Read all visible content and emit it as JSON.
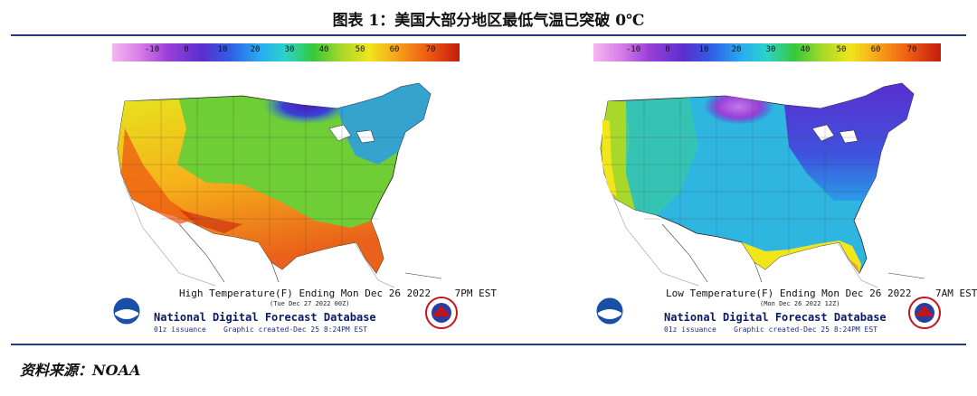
{
  "title": "图表 1：美国大部分地区最低气温已突破 0℃",
  "source": "资料来源：NOAA",
  "colorbar": {
    "ticks": [
      "-10",
      "0",
      "10",
      "20",
      "30",
      "40",
      "50",
      "60",
      "70"
    ],
    "gradient_colors": [
      "#f4b8f0",
      "#d87ce6",
      "#9a3fd8",
      "#5a2fcf",
      "#2f5fe6",
      "#29aef0",
      "#2ad4c8",
      "#37c83a",
      "#a8d82a",
      "#f1e51c",
      "#f6a219",
      "#ee5a12",
      "#c41b0e"
    ]
  },
  "maps": [
    {
      "name": "high",
      "header": "High Temperature(F) Ending Mon Dec 26 2022",
      "time": "7PM EST",
      "valid": "(Tue Dec 27 2022 00Z)",
      "db_title": "National Digital Forecast Database",
      "issuance": "01z issuance",
      "created": "Graphic created-Dec 25  8:24PM EST"
    },
    {
      "name": "low",
      "header": "Low Temperature(F) Ending Mon Dec 26 2022",
      "time": "7AM EST",
      "valid": "(Mon Dec 26 2022 12Z)",
      "db_title": "National Digital Forecast Database",
      "issuance": "01z issuance",
      "created": "Graphic created-Dec 25  8:24PM EST"
    }
  ],
  "logos": {
    "noaa": "noaa-logo",
    "nws": "nws-logo"
  }
}
